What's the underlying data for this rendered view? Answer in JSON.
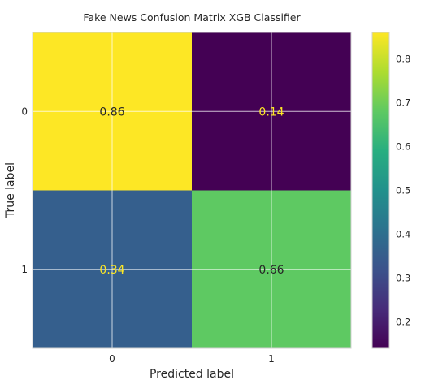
{
  "chart_data": {
    "type": "heatmap",
    "title": "Fake News Confusion Matrix XGB Classifier",
    "xlabel": "Predicted label",
    "ylabel": "True label",
    "x_ticks": [
      "0",
      "1"
    ],
    "y_ticks": [
      "0",
      "1"
    ],
    "matrix": [
      [
        0.86,
        0.14
      ],
      [
        0.34,
        0.66
      ]
    ],
    "cell_labels": [
      [
        "0.86",
        "0.14"
      ],
      [
        "0.34",
        "0.66"
      ]
    ],
    "colormap": "viridis",
    "colorbar": {
      "range": [
        0.14,
        0.86
      ],
      "ticks": [
        0.2,
        0.3,
        0.4,
        0.5,
        0.6,
        0.7,
        0.8
      ],
      "tick_labels": [
        "0.2",
        "0.3",
        "0.4",
        "0.5",
        "0.6",
        "0.7",
        "0.8"
      ]
    },
    "grid": true,
    "colors": {
      "cell_0_0": "#fde725",
      "cell_0_1": "#440154",
      "cell_1_0": "#355f8d",
      "cell_1_1": "#5ec962",
      "text_dark": "#262626",
      "text_light": "#fde725"
    }
  }
}
